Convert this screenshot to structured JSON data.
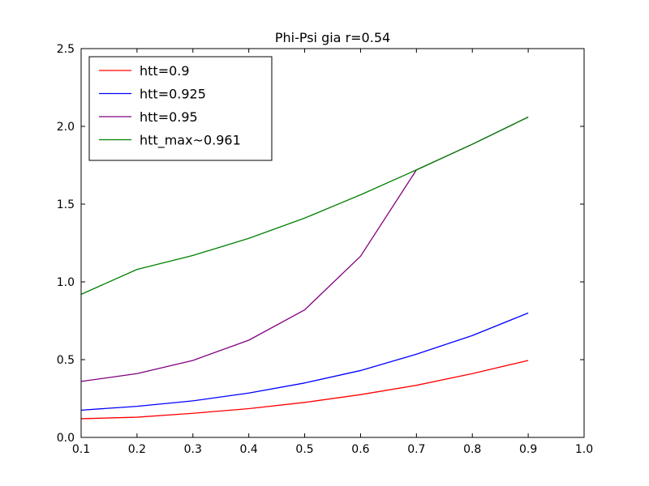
{
  "chart_data": {
    "type": "line",
    "title": "Phi-Psi gia r=0.54",
    "xlabel": "",
    "ylabel": "",
    "xlim": [
      0.1,
      1.0
    ],
    "ylim": [
      0.0,
      2.5
    ],
    "xticks": [
      "0.1",
      "0.2",
      "0.3",
      "0.4",
      "0.5",
      "0.6",
      "0.7",
      "0.8",
      "0.9",
      "1.0"
    ],
    "yticks": [
      "0.0",
      "0.5",
      "1.0",
      "1.5",
      "2.0",
      "2.5"
    ],
    "x": [
      0.1,
      0.2,
      0.3,
      0.4,
      0.5,
      0.6,
      0.7,
      0.8,
      0.9
    ],
    "grid": false,
    "legend_position": "top-left",
    "series": [
      {
        "name": "htt=0.9",
        "color": "#ff0000",
        "values": [
          0.12,
          0.13,
          0.155,
          0.185,
          0.225,
          0.275,
          0.335,
          0.41,
          0.495
        ]
      },
      {
        "name": "htt=0.925",
        "color": "#0000ff",
        "values": [
          0.175,
          0.2,
          0.235,
          0.285,
          0.35,
          0.43,
          0.535,
          0.655,
          0.8
        ]
      },
      {
        "name": "htt=0.95",
        "color": "#800080",
        "values": [
          0.36,
          0.41,
          0.495,
          0.625,
          0.82,
          1.165,
          1.72,
          1.885,
          2.06
        ]
      },
      {
        "name": "htt_max~0.961",
        "color": "#008000",
        "values": [
          0.92,
          1.08,
          1.17,
          1.28,
          1.41,
          1.56,
          1.72,
          1.885,
          2.06
        ]
      }
    ]
  }
}
